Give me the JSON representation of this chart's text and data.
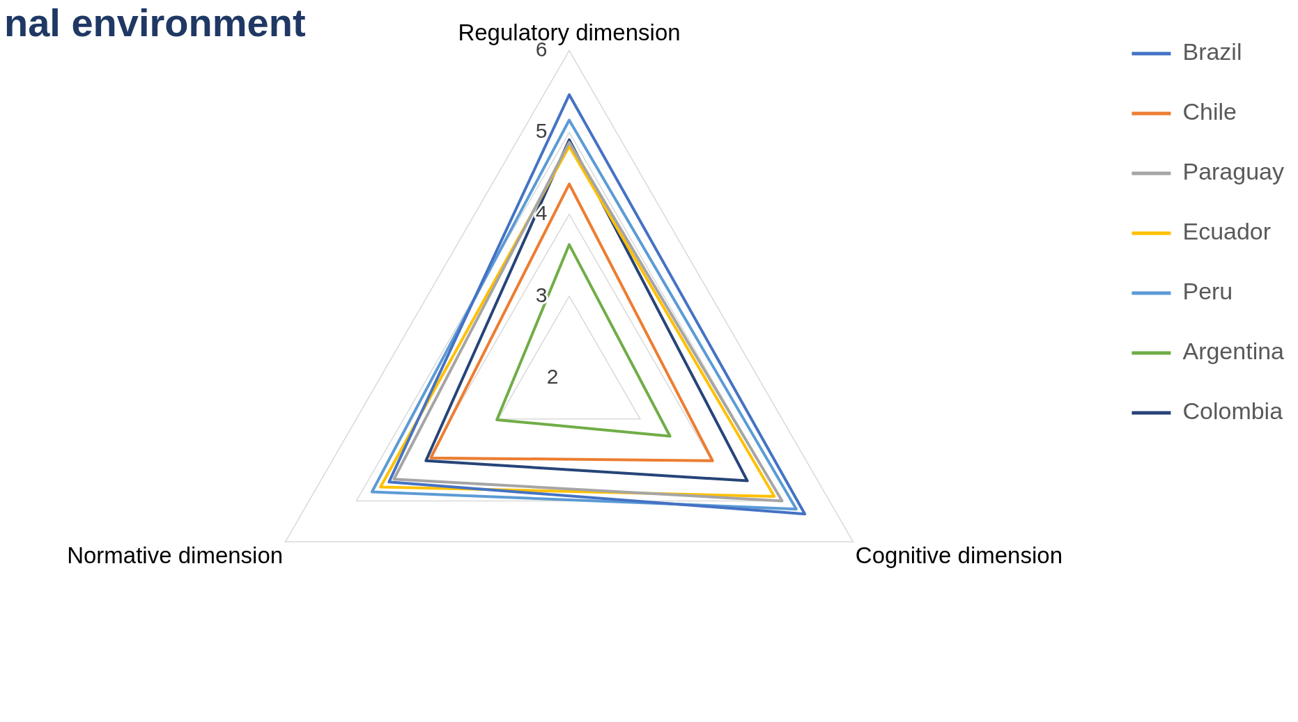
{
  "chart_data": {
    "type": "radar",
    "title": "nal environment",
    "categories": [
      "Regulatory dimension",
      "Cognitive dimension",
      "Normative dimension"
    ],
    "series": [
      {
        "name": "Brazil",
        "color": "#4472c4",
        "values": [
          5.46,
          5.32,
          4.54
        ]
      },
      {
        "name": "Chile",
        "color": "#ed7d31",
        "values": [
          4.37,
          4.02,
          3.95
        ]
      },
      {
        "name": "Paraguay",
        "color": "#a5a5a5",
        "values": [
          4.88,
          5.0,
          4.47
        ]
      },
      {
        "name": "Ecuador",
        "color": "#ffc000",
        "values": [
          4.83,
          4.89,
          4.66
        ]
      },
      {
        "name": "Peru",
        "color": "#5b9bd5",
        "values": [
          5.15,
          5.2,
          4.78
        ]
      },
      {
        "name": "Argentina",
        "color": "#70ad47",
        "values": [
          3.63,
          3.42,
          3.02
        ]
      },
      {
        "name": "Colombia",
        "color": "#264478",
        "values": [
          4.91,
          4.51,
          4.02
        ]
      }
    ],
    "ylim": [
      2,
      6
    ],
    "yticks": [
      2,
      3,
      4,
      5,
      6
    ],
    "grid": true,
    "legend": "right",
    "marker": "none"
  }
}
